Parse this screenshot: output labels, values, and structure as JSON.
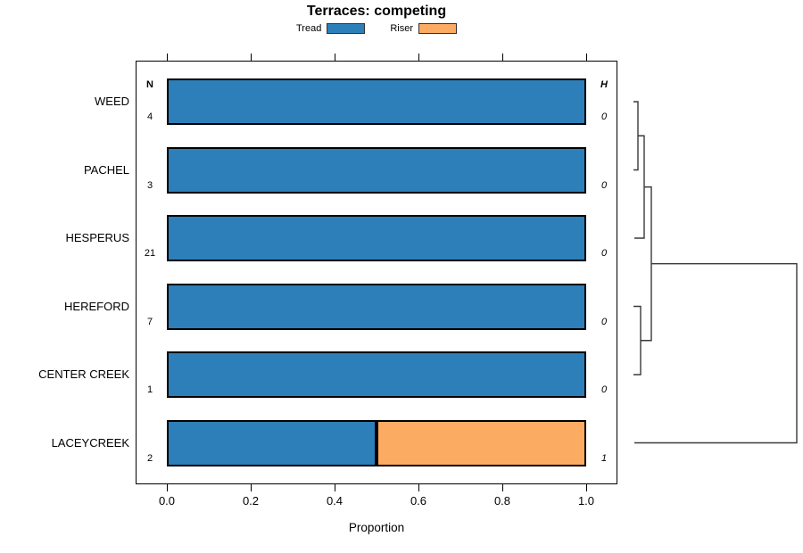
{
  "labels": {
    "n_header": "N",
    "h_header": "H"
  },
  "chart_data": {
    "type": "bar",
    "orientation": "horizontal",
    "stacked": true,
    "title": "Terraces: competing",
    "xlabel": "Proportion",
    "xlim": [
      0,
      1
    ],
    "x_ticks": [
      "0.0",
      "0.2",
      "0.4",
      "0.6",
      "0.8",
      "1.0"
    ],
    "grid": false,
    "legend_position": "top-center",
    "categories": [
      "WEED",
      "PACHEL",
      "HESPERUS",
      "HEREFORD",
      "CENTER CREEK",
      "LACEYCREEK"
    ],
    "series": [
      {
        "name": "Tread",
        "color": "#2D7FB9",
        "values": [
          1.0,
          1.0,
          1.0,
          1.0,
          1.0,
          0.5
        ]
      },
      {
        "name": "Riser",
        "color": "#FCAB62",
        "values": [
          0.0,
          0.0,
          0.0,
          0.0,
          0.0,
          0.5
        ]
      }
    ],
    "n_values": [
      "4",
      "3",
      "21",
      "7",
      "1",
      "2"
    ],
    "h_values": [
      "0",
      "0",
      "0",
      "0",
      "0",
      "1"
    ],
    "dendrogram": {
      "side": "right",
      "structure": [
        [
          [
            [
              "WEED",
              "PACHEL"
            ],
            "HESPERUS"
          ],
          [
            "HEREFORD",
            "CENTER CREEK"
          ]
        ],
        "LACEYCREEK"
      ]
    }
  }
}
